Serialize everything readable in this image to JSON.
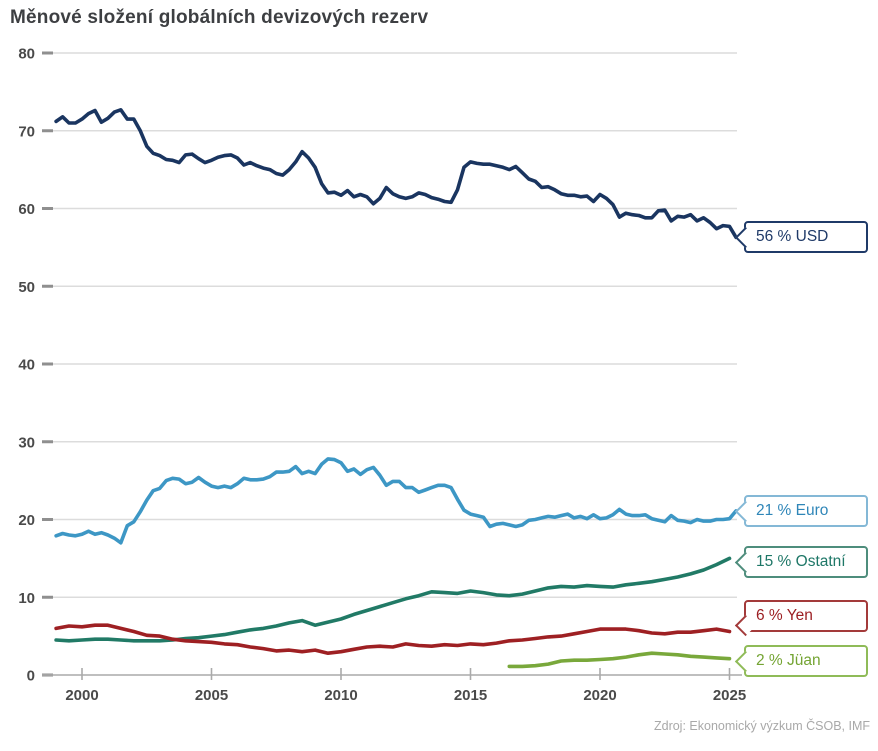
{
  "title": "Měnové složení globálních devizových rezerv",
  "source": "Zdroj: Ekonomický výzkum ČSOB, IMF",
  "chart_data": {
    "type": "line",
    "title": "Měnové složení globálních devizových rezerv",
    "xlabel": "",
    "ylabel": "",
    "ylim": [
      0,
      80
    ],
    "xlim": [
      1999,
      2025.5
    ],
    "yticks": [
      0,
      10,
      20,
      30,
      40,
      50,
      60,
      70,
      80
    ],
    "xticks": [
      2000,
      2005,
      2010,
      2015,
      2020,
      2025
    ],
    "grid": "horizontal",
    "legend_position": "right-callouts",
    "colors": {
      "grid": "#dcdcdc",
      "tick": "#8f8f8f",
      "axis": "#aaaaaa",
      "axis_label": "#4a4a4a"
    },
    "series": [
      {
        "name": "USD",
        "label": "56 % USD",
        "color": "#1a3560",
        "x_start": 1999.0,
        "x_step": 0.25,
        "values": [
          71.2,
          71.8,
          71.0,
          71.0,
          71.5,
          72.2,
          72.6,
          71.1,
          71.6,
          72.4,
          72.7,
          71.5,
          71.5,
          70.0,
          68.0,
          67.1,
          66.8,
          66.3,
          66.2,
          65.9,
          66.9,
          67.0,
          66.4,
          65.9,
          66.2,
          66.6,
          66.8,
          66.9,
          66.5,
          65.6,
          65.9,
          65.5,
          65.2,
          65.0,
          64.5,
          64.3,
          65.0,
          66.0,
          67.3,
          66.5,
          65.3,
          63.2,
          62.0,
          62.1,
          61.7,
          62.3,
          61.5,
          61.8,
          61.5,
          60.6,
          61.3,
          62.7,
          61.9,
          61.5,
          61.3,
          61.5,
          62.0,
          61.8,
          61.4,
          61.2,
          60.9,
          60.8,
          62.4,
          65.3,
          66.0,
          65.8,
          65.7,
          65.7,
          65.5,
          65.3,
          65.0,
          65.4,
          64.6,
          63.8,
          63.5,
          62.7,
          62.8,
          62.4,
          61.9,
          61.7,
          61.7,
          61.5,
          61.6,
          60.9,
          61.8,
          61.3,
          60.5,
          58.9,
          59.4,
          59.2,
          59.1,
          58.8,
          58.8,
          59.7,
          59.8,
          58.4,
          59.0,
          58.9,
          59.2,
          58.4,
          58.8,
          58.2,
          57.4,
          57.8,
          57.7,
          56.3
        ]
      },
      {
        "name": "Euro",
        "label": "21 % Euro",
        "color": "#3d97c5",
        "x_start": 1999.0,
        "x_step": 0.25,
        "values": [
          17.9,
          18.2,
          18.0,
          17.9,
          18.1,
          18.5,
          18.1,
          18.3,
          18.0,
          17.6,
          17.0,
          19.2,
          19.7,
          21.0,
          22.5,
          23.7,
          24.0,
          25.0,
          25.3,
          25.2,
          24.6,
          24.8,
          25.4,
          24.8,
          24.3,
          24.1,
          24.3,
          24.1,
          24.6,
          25.3,
          25.1,
          25.1,
          25.2,
          25.5,
          26.1,
          26.1,
          26.2,
          26.8,
          25.9,
          26.2,
          25.9,
          27.1,
          27.8,
          27.7,
          27.3,
          26.2,
          26.5,
          25.8,
          26.4,
          26.7,
          25.7,
          24.4,
          24.9,
          24.9,
          24.1,
          24.1,
          23.5,
          23.8,
          24.1,
          24.4,
          24.4,
          24.1,
          22.6,
          21.2,
          20.7,
          20.5,
          20.3,
          19.1,
          19.4,
          19.5,
          19.3,
          19.1,
          19.3,
          19.9,
          20.0,
          20.2,
          20.4,
          20.3,
          20.5,
          20.7,
          20.2,
          20.4,
          20.1,
          20.6,
          20.1,
          20.2,
          20.6,
          21.3,
          20.7,
          20.5,
          20.5,
          20.6,
          20.1,
          19.9,
          19.7,
          20.5,
          19.9,
          19.8,
          19.6,
          20.0,
          19.8,
          19.8,
          20.0,
          20.0,
          20.1,
          21.1
        ]
      },
      {
        "name": "Ostatní",
        "label": "15 % Ostatní",
        "color": "#217a66",
        "x_start": 1999.0,
        "x_step": 0.5,
        "values": [
          4.5,
          4.4,
          4.5,
          4.6,
          4.6,
          4.5,
          4.4,
          4.4,
          4.4,
          4.5,
          4.7,
          4.8,
          5.0,
          5.2,
          5.5,
          5.8,
          6.0,
          6.3,
          6.7,
          7.0,
          6.4,
          6.8,
          7.2,
          7.8,
          8.3,
          8.8,
          9.3,
          9.8,
          10.2,
          10.7,
          10.6,
          10.5,
          10.8,
          10.6,
          10.3,
          10.2,
          10.4,
          10.8,
          11.2,
          11.4,
          11.3,
          11.5,
          11.4,
          11.3,
          11.6,
          11.8,
          12.0,
          12.3,
          12.6,
          13.0,
          13.5,
          14.2,
          15.0
        ]
      },
      {
        "name": "Yen",
        "label": "6 % Yen",
        "color": "#9e2023",
        "x_start": 1999.0,
        "x_step": 0.5,
        "values": [
          6.0,
          6.3,
          6.2,
          6.4,
          6.4,
          6.0,
          5.6,
          5.1,
          5.0,
          4.6,
          4.4,
          4.3,
          4.2,
          4.0,
          3.9,
          3.6,
          3.4,
          3.1,
          3.2,
          3.0,
          3.2,
          2.8,
          3.0,
          3.3,
          3.6,
          3.7,
          3.6,
          4.0,
          3.8,
          3.7,
          3.9,
          3.8,
          4.0,
          3.9,
          4.1,
          4.4,
          4.5,
          4.7,
          4.9,
          5.0,
          5.3,
          5.6,
          5.9,
          5.9,
          5.9,
          5.7,
          5.4,
          5.3,
          5.5,
          5.5,
          5.7,
          5.9,
          5.6
        ]
      },
      {
        "name": "Jüan",
        "label": "2 % Jüan",
        "color": "#79a83b",
        "x_start": 2016.5,
        "x_step": 0.5,
        "values": [
          1.1,
          1.1,
          1.2,
          1.4,
          1.8,
          1.9,
          1.9,
          2.0,
          2.1,
          2.3,
          2.6,
          2.8,
          2.7,
          2.6,
          2.4,
          2.3,
          2.2,
          2.1
        ]
      }
    ]
  }
}
